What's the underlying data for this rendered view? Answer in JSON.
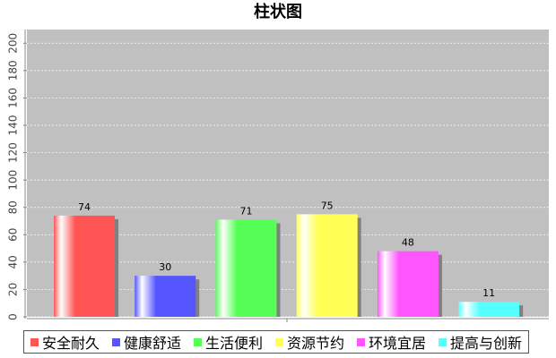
{
  "chart_data": {
    "type": "bar",
    "title": "柱状图",
    "categories": [
      null
    ],
    "series": [
      {
        "name": "安全耐久",
        "color": "#ff5555",
        "values": [
          74
        ]
      },
      {
        "name": "健康舒适",
        "color": "#5555ff",
        "values": [
          30
        ]
      },
      {
        "name": "生活便利",
        "color": "#55ff55",
        "values": [
          71
        ]
      },
      {
        "name": "资源节约",
        "color": "#ffff55",
        "values": [
          75
        ]
      },
      {
        "name": "环境宜居",
        "color": "#ff55ff",
        "values": [
          48
        ]
      },
      {
        "name": "提高与创新",
        "color": "#55ffff",
        "values": [
          11
        ]
      }
    ],
    "ylim": [
      0,
      210
    ],
    "yticks": [
      0,
      20,
      40,
      60,
      80,
      100,
      120,
      140,
      160,
      180,
      200
    ],
    "grid": true,
    "legend": "bottom"
  }
}
